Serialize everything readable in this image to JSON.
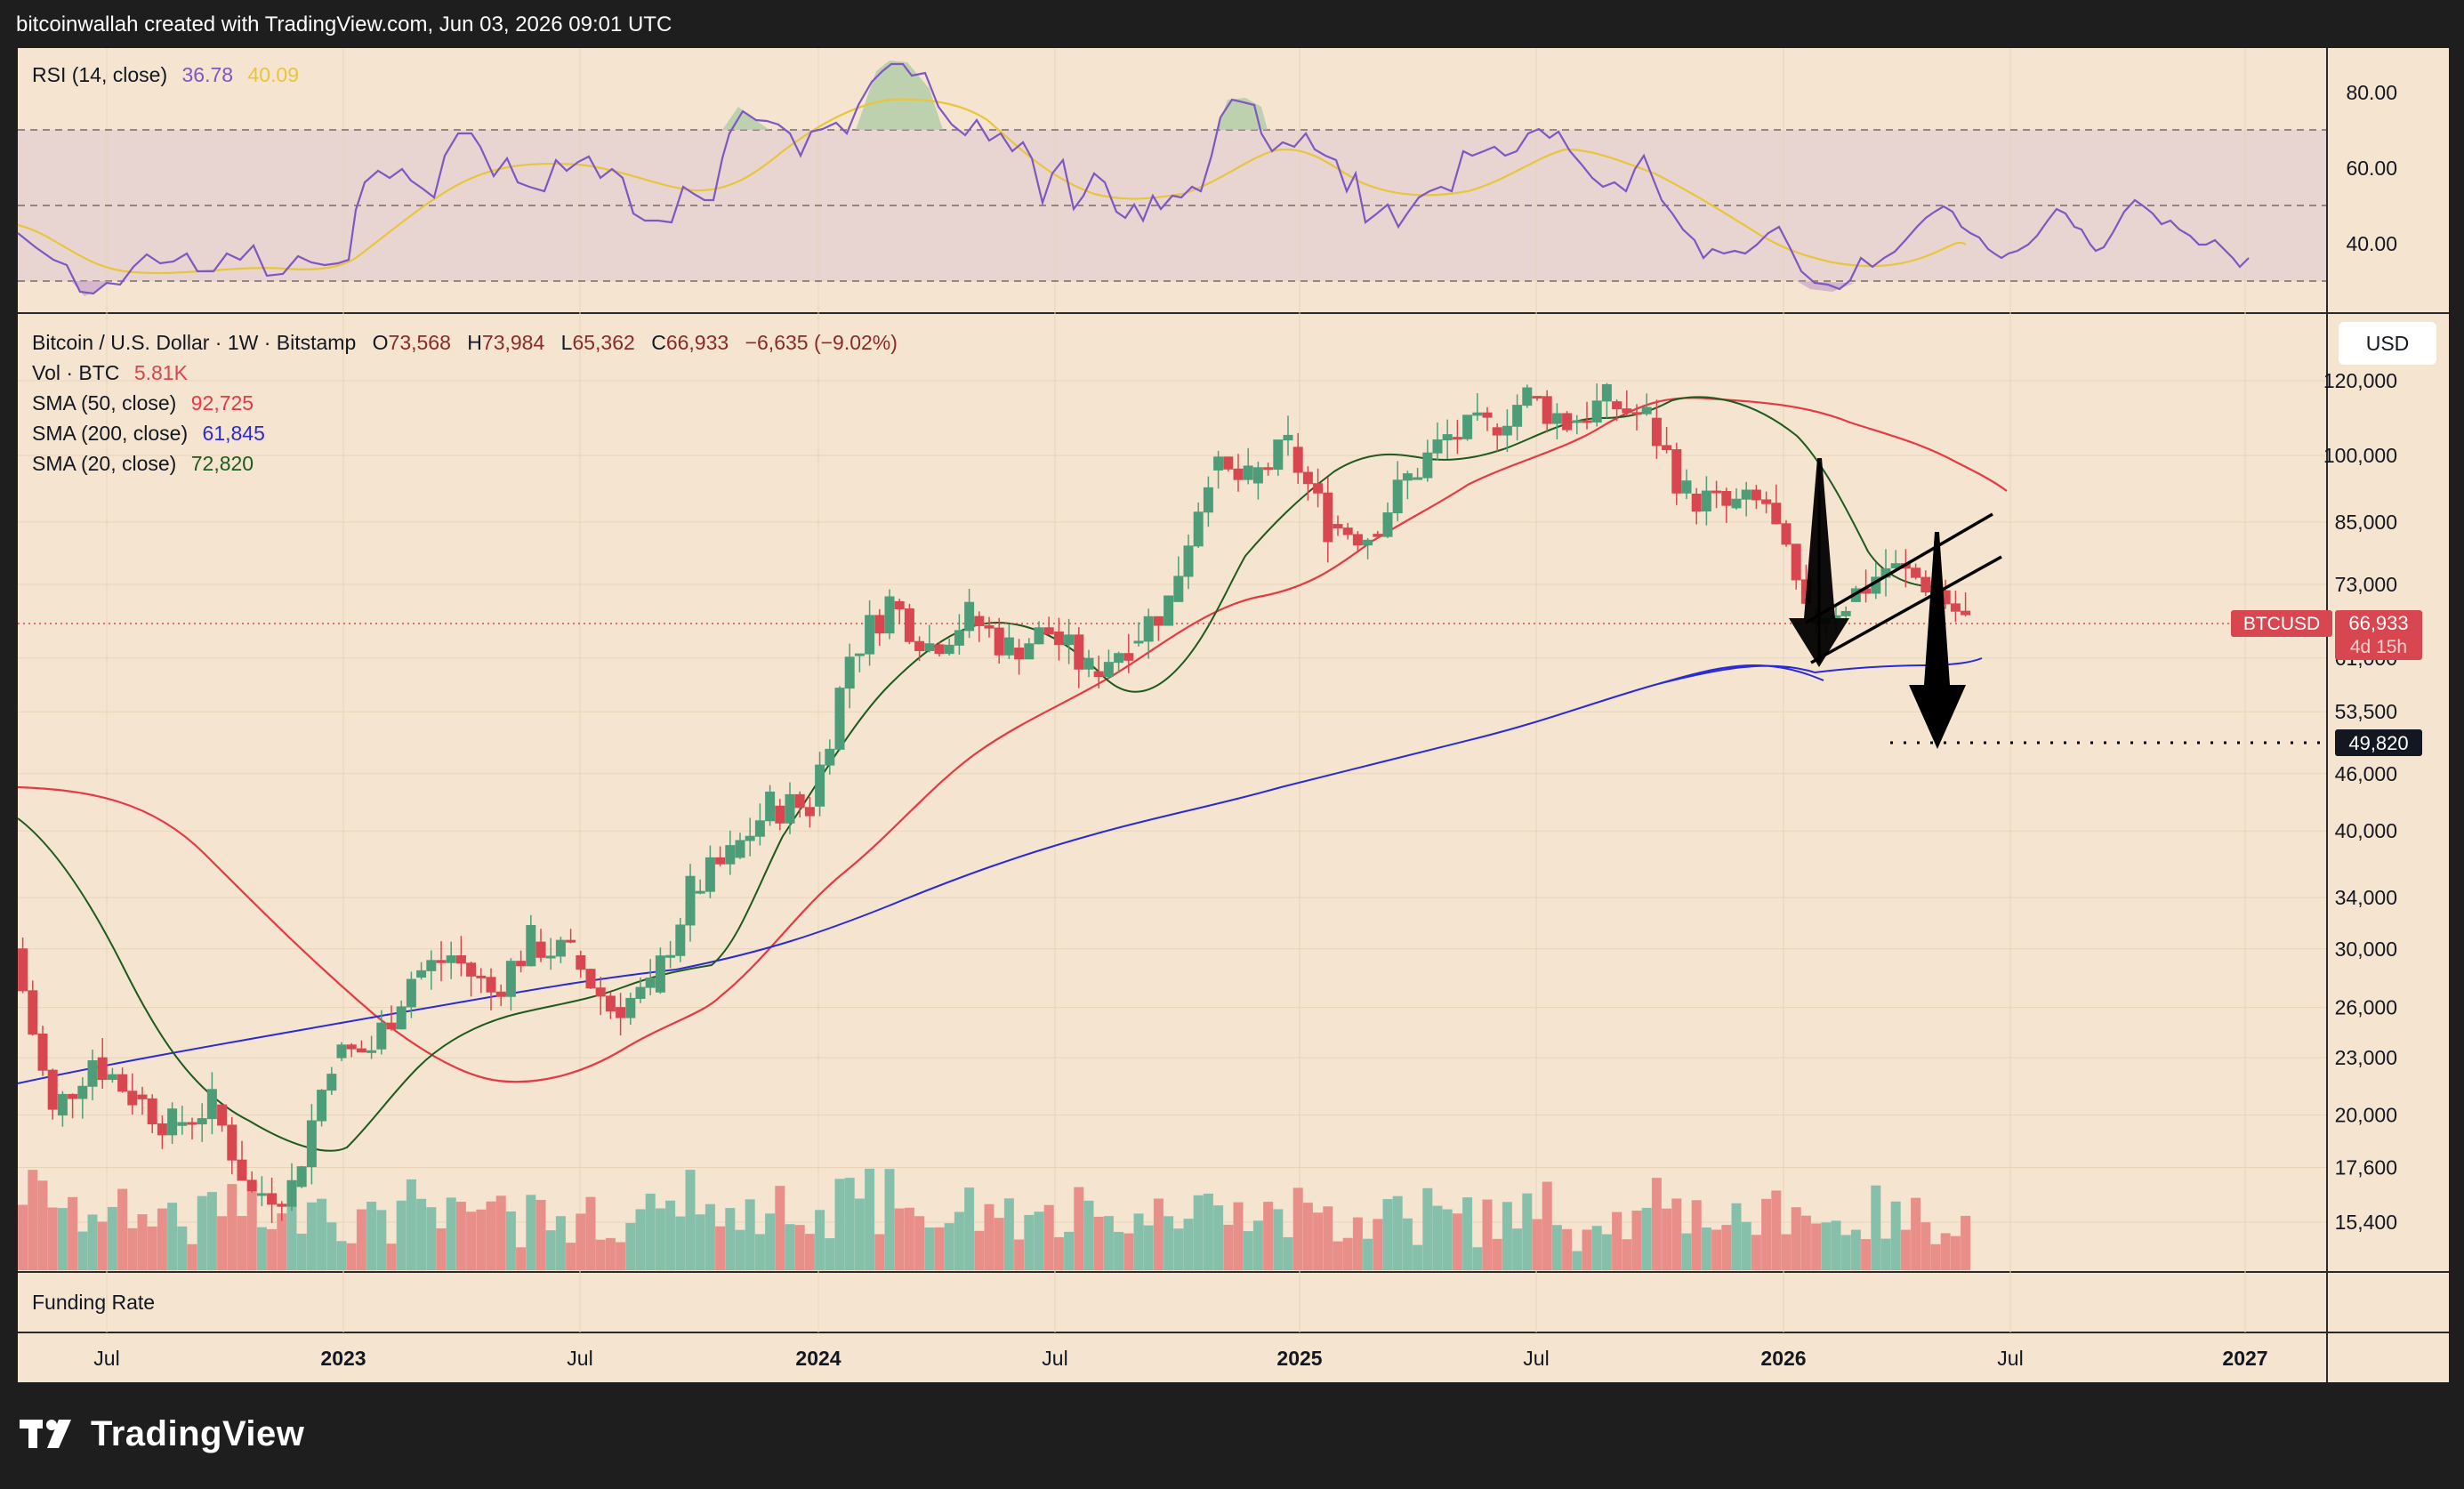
{
  "header": {
    "creator": "bitcoinwallah created with TradingView.com, Jun 03, 2026 09:01 UTC"
  },
  "footer": {
    "logo_text": "TradingView"
  },
  "rsi_panel": {
    "title": "RSI (14, close)",
    "value1": "36.78",
    "value2": "40.09",
    "value1_color": "#7e57c2",
    "value2_color": "#e8c53c",
    "ticks": [
      "80.00",
      "60.00",
      "40.00"
    ]
  },
  "price_panel": {
    "symbol": "Bitcoin / U.S. Dollar · 1W · Bitstamp",
    "ohlc": [
      {
        "k": "O",
        "v": "73,568"
      },
      {
        "k": "H",
        "v": "73,984"
      },
      {
        "k": "L",
        "v": "65,362"
      },
      {
        "k": "C",
        "v": "66,933"
      }
    ],
    "change": "−6,635 (−9.02%)",
    "volume": {
      "label": "Vol · BTC",
      "value": "5.81K"
    },
    "indicators": [
      {
        "label": "SMA (50, close)",
        "value": "92,725",
        "color": "#e53945"
      },
      {
        "label": "SMA (200, close)",
        "value": "61,845",
        "color": "#2b2bd6"
      },
      {
        "label": "SMA (20, close)",
        "value": "72,820",
        "color": "#1e5a1e"
      }
    ],
    "currency": "USD",
    "price_ticks": [
      "120,000",
      "100,000",
      "85,000",
      "73,000",
      "61,000",
      "53,500",
      "46,000",
      "40,000",
      "34,000",
      "30,000",
      "26,000",
      "23,000",
      "20,000",
      "17,600",
      "15,400"
    ],
    "last_price": {
      "symbol": "BTCUSD",
      "value": "66,933",
      "countdown": "4d 15h"
    },
    "target": {
      "value": "49,820"
    }
  },
  "funding_panel": {
    "title": "Funding Rate"
  },
  "time_axis": [
    "Jul",
    "2023",
    "Jul",
    "2024",
    "Jul",
    "2025",
    "Jul",
    "2026",
    "Jul",
    "2027"
  ],
  "colors": {
    "up": "#4d9e78",
    "down": "#d8464f",
    "bg": "#f5e4cf",
    "rsi_band": "#e9d8d6",
    "sma50": "#e53945",
    "sma200": "#2b2bd6",
    "sma20": "#1e5a1e",
    "vol_up": "#86c0ab",
    "vol_down": "#e88f8a"
  },
  "chart_data": {
    "type": "candlestick",
    "title": "Bitcoin / U.S. Dollar · 1W · Bitstamp",
    "y_scale": "log",
    "ylim": [
      14500,
      130000
    ],
    "x_range": [
      "2022-05",
      "2027-03"
    ],
    "series": [
      {
        "name": "BTCUSD",
        "points": [
          {
            "x": "2022-05",
            "y": 30000
          },
          {
            "x": "2022-06",
            "y": 20000
          },
          {
            "x": "2022-07",
            "y": 23000
          },
          {
            "x": "2022-08",
            "y": 21000
          },
          {
            "x": "2022-09",
            "y": 19500
          },
          {
            "x": "2022-10",
            "y": 20500
          },
          {
            "x": "2022-11",
            "y": 16500
          },
          {
            "x": "2022-12",
            "y": 16800
          },
          {
            "x": "2023-01",
            "y": 23000
          },
          {
            "x": "2023-02",
            "y": 23500
          },
          {
            "x": "2023-03",
            "y": 28000
          },
          {
            "x": "2023-04",
            "y": 29500
          },
          {
            "x": "2023-05",
            "y": 27000
          },
          {
            "x": "2023-06",
            "y": 30500
          },
          {
            "x": "2023-07",
            "y": 29500
          },
          {
            "x": "2023-08",
            "y": 26000
          },
          {
            "x": "2023-09",
            "y": 27000
          },
          {
            "x": "2023-10",
            "y": 34500
          },
          {
            "x": "2023-11",
            "y": 37500
          },
          {
            "x": "2023-12",
            "y": 42500
          },
          {
            "x": "2024-01",
            "y": 42500
          },
          {
            "x": "2024-02",
            "y": 61500
          },
          {
            "x": "2024-03",
            "y": 70000
          },
          {
            "x": "2024-04",
            "y": 63000
          },
          {
            "x": "2024-05",
            "y": 67500
          },
          {
            "x": "2024-06",
            "y": 62500
          },
          {
            "x": "2024-07",
            "y": 65000
          },
          {
            "x": "2024-08",
            "y": 59000
          },
          {
            "x": "2024-09",
            "y": 63500
          },
          {
            "x": "2024-10",
            "y": 70000
          },
          {
            "x": "2024-11",
            "y": 96500
          },
          {
            "x": "2024-12",
            "y": 93500
          },
          {
            "x": "2025-01",
            "y": 102000
          },
          {
            "x": "2025-02",
            "y": 84500
          },
          {
            "x": "2025-03",
            "y": 82500
          },
          {
            "x": "2025-04",
            "y": 94500
          },
          {
            "x": "2025-05",
            "y": 104500
          },
          {
            "x": "2025-06",
            "y": 107000
          },
          {
            "x": "2025-07",
            "y": 115500
          },
          {
            "x": "2025-08",
            "y": 108500
          },
          {
            "x": "2025-09",
            "y": 114000
          },
          {
            "x": "2025-10",
            "y": 109500
          },
          {
            "x": "2025-11",
            "y": 91000
          },
          {
            "x": "2025-12",
            "y": 88000
          },
          {
            "x": "2026-01",
            "y": 89000
          },
          {
            "x": "2026-02",
            "y": 67000
          },
          {
            "x": "2026-03",
            "y": 70000
          },
          {
            "x": "2026-04",
            "y": 76000
          },
          {
            "x": "2026-05",
            "y": 73500
          },
          {
            "x": "2026-06",
            "y": 66933
          }
        ]
      },
      {
        "name": "SMA (50, close)",
        "points": [
          {
            "x": "2022-05",
            "y": 48000
          },
          {
            "x": "2022-09",
            "y": 39000
          },
          {
            "x": "2023-01",
            "y": 26000
          },
          {
            "x": "2023-06",
            "y": 21000
          },
          {
            "x": "2023-10",
            "y": 25500
          },
          {
            "x": "2024-02",
            "y": 32000
          },
          {
            "x": "2024-06",
            "y": 43000
          },
          {
            "x": "2024-10",
            "y": 53000
          },
          {
            "x": "2025-02",
            "y": 68000
          },
          {
            "x": "2025-06",
            "y": 81000
          },
          {
            "x": "2025-10",
            "y": 100000
          },
          {
            "x": "2026-02",
            "y": 99000
          },
          {
            "x": "2026-06",
            "y": 92725
          }
        ]
      },
      {
        "name": "SMA (200, close)",
        "points": [
          {
            "x": "2022-05",
            "y": 21000
          },
          {
            "x": "2023-01",
            "y": 23500
          },
          {
            "x": "2023-10",
            "y": 28500
          },
          {
            "x": "2024-06",
            "y": 37500
          },
          {
            "x": "2025-02",
            "y": 46000
          },
          {
            "x": "2025-08",
            "y": 51500
          },
          {
            "x": "2026-01",
            "y": 57500
          },
          {
            "x": "2026-06",
            "y": 61845
          }
        ]
      },
      {
        "name": "SMA (20, close)",
        "points": [
          {
            "x": "2022-05",
            "y": 42000
          },
          {
            "x": "2022-10",
            "y": 21500
          },
          {
            "x": "2023-01",
            "y": 19000
          },
          {
            "x": "2023-06",
            "y": 27000
          },
          {
            "x": "2023-10",
            "y": 29000
          },
          {
            "x": "2024-02",
            "y": 44000
          },
          {
            "x": "2024-06",
            "y": 63500
          },
          {
            "x": "2024-10",
            "y": 63000
          },
          {
            "x": "2025-02",
            "y": 94000
          },
          {
            "x": "2025-05",
            "y": 89000
          },
          {
            "x": "2025-09",
            "y": 112000
          },
          {
            "x": "2025-12",
            "y": 105000
          },
          {
            "x": "2026-03",
            "y": 73000
          },
          {
            "x": "2026-06",
            "y": 72820
          }
        ]
      }
    ]
  }
}
